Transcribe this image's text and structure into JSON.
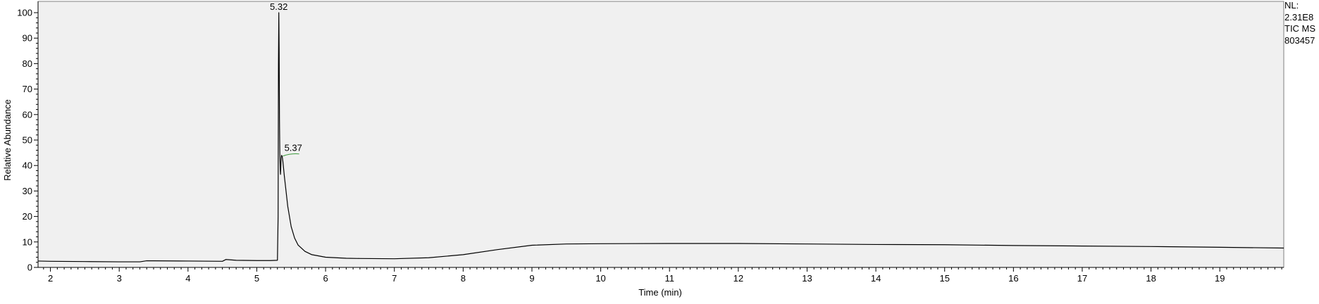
{
  "chart_data": {
    "type": "line",
    "title": "",
    "xlabel": "Time (min)",
    "ylabel": "Relative Abundance",
    "xlim": [
      1.82,
      19.93
    ],
    "ylim": [
      0,
      100
    ],
    "x_ticks": [
      2,
      3,
      4,
      5,
      6,
      7,
      8,
      9,
      10,
      11,
      12,
      13,
      14,
      15,
      16,
      17,
      18,
      19
    ],
    "y_ticks": [
      0,
      10,
      20,
      30,
      40,
      50,
      60,
      70,
      80,
      90,
      100
    ],
    "grid": false,
    "background": "#f0f0f0",
    "line_color": "#000000",
    "series": [
      {
        "x": [
          1.82,
          2.0,
          2.5,
          3.0,
          3.3,
          3.4,
          3.5,
          4.0,
          4.5,
          4.55,
          4.6,
          4.65,
          4.7,
          5.0,
          5.2,
          5.3,
          5.31,
          5.315,
          5.32,
          5.325,
          5.33,
          5.335,
          5.34,
          5.345,
          5.35,
          5.355,
          5.36,
          5.37,
          5.38,
          5.4,
          5.45,
          5.5,
          5.55,
          5.6,
          5.7,
          5.8,
          6.0,
          6.3,
          6.5,
          7.0,
          7.5,
          8.0,
          8.5,
          9.0,
          9.5,
          10.0,
          11.0,
          12.0,
          13.0,
          14.0,
          15.0,
          16.0,
          17.0,
          18.0,
          19.0,
          19.93
        ],
        "y": [
          2.5,
          2.4,
          2.3,
          2.2,
          2.2,
          2.6,
          2.6,
          2.5,
          2.4,
          3.1,
          3.0,
          2.9,
          2.8,
          2.7,
          2.7,
          2.8,
          20.0,
          80.0,
          100.0,
          85.0,
          58.0,
          45.0,
          39.0,
          36.5,
          40.0,
          43.0,
          44.0,
          43.5,
          41.5,
          36.0,
          24.0,
          16.0,
          11.5,
          8.8,
          6.3,
          5.0,
          4.0,
          3.6,
          3.5,
          3.4,
          3.8,
          5.0,
          7.0,
          8.7,
          9.2,
          9.3,
          9.4,
          9.4,
          9.2,
          9.0,
          8.9,
          8.6,
          8.4,
          8.2,
          7.9,
          7.6
        ]
      }
    ],
    "annotations": [
      {
        "text": "5.32",
        "x": 5.32,
        "y": 100
      },
      {
        "text": "5.37",
        "x": 5.37,
        "y": 44
      }
    ],
    "side_info": [
      "NL:",
      "2.31E8",
      "TIC  MS",
      "803457"
    ]
  }
}
